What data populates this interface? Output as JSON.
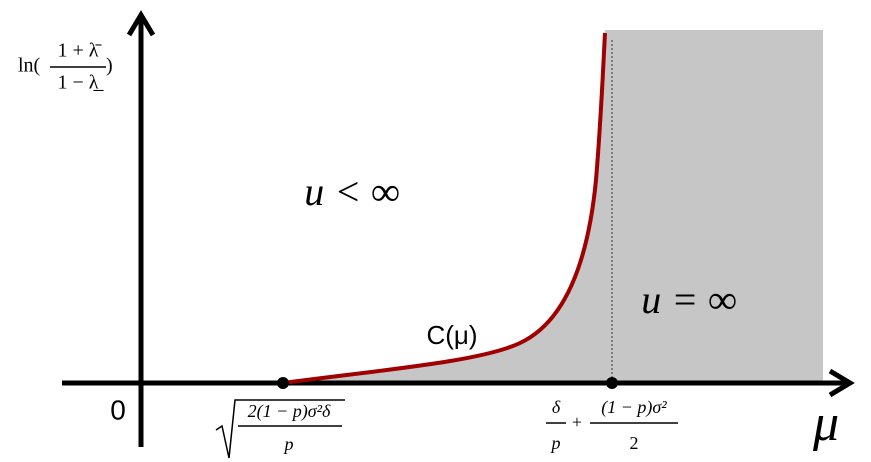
{
  "y_axis_label": {
    "prefix": "ln(",
    "numerator": "1 + λ̄",
    "denominator": "1 − λ̲",
    "suffix": ")"
  },
  "origin_label": "0",
  "x_axis_label": "μ",
  "curve_label": "C(μ)",
  "region_finite": "u < ∞",
  "region_infinite": "u = ∞",
  "x_marker_left": {
    "numerator": "2(1 − p)σ²δ",
    "denominator": "p"
  },
  "x_marker_right": {
    "first_numerator": "δ",
    "first_denominator": "p",
    "plus": "+",
    "second_numerator": "(1 − p)σ²",
    "second_denominator": "2"
  }
}
